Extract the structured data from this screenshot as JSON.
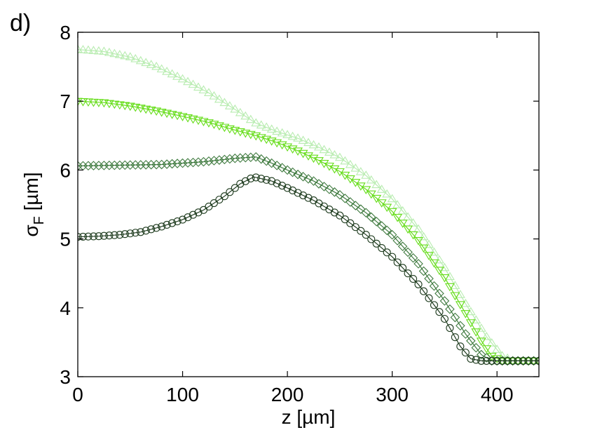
{
  "chart_data": {
    "type": "line",
    "panel_label": "d)",
    "xlabel": "z [µm]",
    "ylabel": {
      "main": "σ",
      "sub": "F",
      "unit": " [µm]"
    },
    "xlim": [
      0,
      440
    ],
    "ylim": [
      3,
      8
    ],
    "xticks": [
      0,
      100,
      200,
      300,
      400
    ],
    "yticks": [
      3,
      4,
      5,
      6,
      7,
      8
    ],
    "grid": false,
    "series": [
      {
        "marker": "circle",
        "color": "#1e3b1e",
        "points": [
          [
            0,
            5.03
          ],
          [
            20,
            5.04
          ],
          [
            40,
            5.06
          ],
          [
            60,
            5.1
          ],
          [
            80,
            5.18
          ],
          [
            100,
            5.28
          ],
          [
            120,
            5.42
          ],
          [
            140,
            5.62
          ],
          [
            155,
            5.8
          ],
          [
            168,
            5.9
          ],
          [
            185,
            5.84
          ],
          [
            200,
            5.74
          ],
          [
            225,
            5.56
          ],
          [
            250,
            5.34
          ],
          [
            275,
            5.06
          ],
          [
            300,
            4.74
          ],
          [
            325,
            4.34
          ],
          [
            350,
            3.84
          ],
          [
            365,
            3.44
          ],
          [
            375,
            3.26
          ],
          [
            385,
            3.23
          ],
          [
            400,
            3.23
          ],
          [
            440,
            3.23
          ]
        ]
      },
      {
        "marker": "diamond",
        "color": "#3f7a3f",
        "points": [
          [
            0,
            6.06
          ],
          [
            40,
            6.07
          ],
          [
            80,
            6.08
          ],
          [
            120,
            6.12
          ],
          [
            150,
            6.17
          ],
          [
            170,
            6.19
          ],
          [
            185,
            6.1
          ],
          [
            200,
            6.0
          ],
          [
            225,
            5.84
          ],
          [
            250,
            5.64
          ],
          [
            275,
            5.38
          ],
          [
            300,
            5.06
          ],
          [
            325,
            4.64
          ],
          [
            350,
            4.1
          ],
          [
            370,
            3.62
          ],
          [
            385,
            3.32
          ],
          [
            395,
            3.23
          ],
          [
            410,
            3.23
          ],
          [
            440,
            3.23
          ]
        ]
      },
      {
        "marker": "triangle-down",
        "color": "#66dd1a",
        "points": [
          [
            0,
            7.0
          ],
          [
            25,
            6.98
          ],
          [
            50,
            6.93
          ],
          [
            75,
            6.86
          ],
          [
            100,
            6.78
          ],
          [
            125,
            6.69
          ],
          [
            150,
            6.58
          ],
          [
            170,
            6.5
          ],
          [
            190,
            6.4
          ],
          [
            210,
            6.28
          ],
          [
            230,
            6.14
          ],
          [
            250,
            5.98
          ],
          [
            275,
            5.72
          ],
          [
            300,
            5.4
          ],
          [
            325,
            4.98
          ],
          [
            350,
            4.44
          ],
          [
            370,
            3.92
          ],
          [
            385,
            3.52
          ],
          [
            395,
            3.3
          ],
          [
            405,
            3.23
          ],
          [
            440,
            3.23
          ]
        ]
      },
      {
        "marker": "triangle-up",
        "color": "#b8ecb0",
        "points": [
          [
            0,
            7.75
          ],
          [
            25,
            7.72
          ],
          [
            50,
            7.64
          ],
          [
            75,
            7.5
          ],
          [
            100,
            7.32
          ],
          [
            125,
            7.12
          ],
          [
            150,
            6.88
          ],
          [
            170,
            6.68
          ],
          [
            190,
            6.56
          ],
          [
            210,
            6.46
          ],
          [
            230,
            6.33
          ],
          [
            250,
            6.18
          ],
          [
            275,
            5.92
          ],
          [
            300,
            5.58
          ],
          [
            325,
            5.14
          ],
          [
            350,
            4.58
          ],
          [
            370,
            4.06
          ],
          [
            390,
            3.58
          ],
          [
            405,
            3.3
          ],
          [
            415,
            3.23
          ],
          [
            440,
            3.23
          ]
        ]
      }
    ]
  }
}
